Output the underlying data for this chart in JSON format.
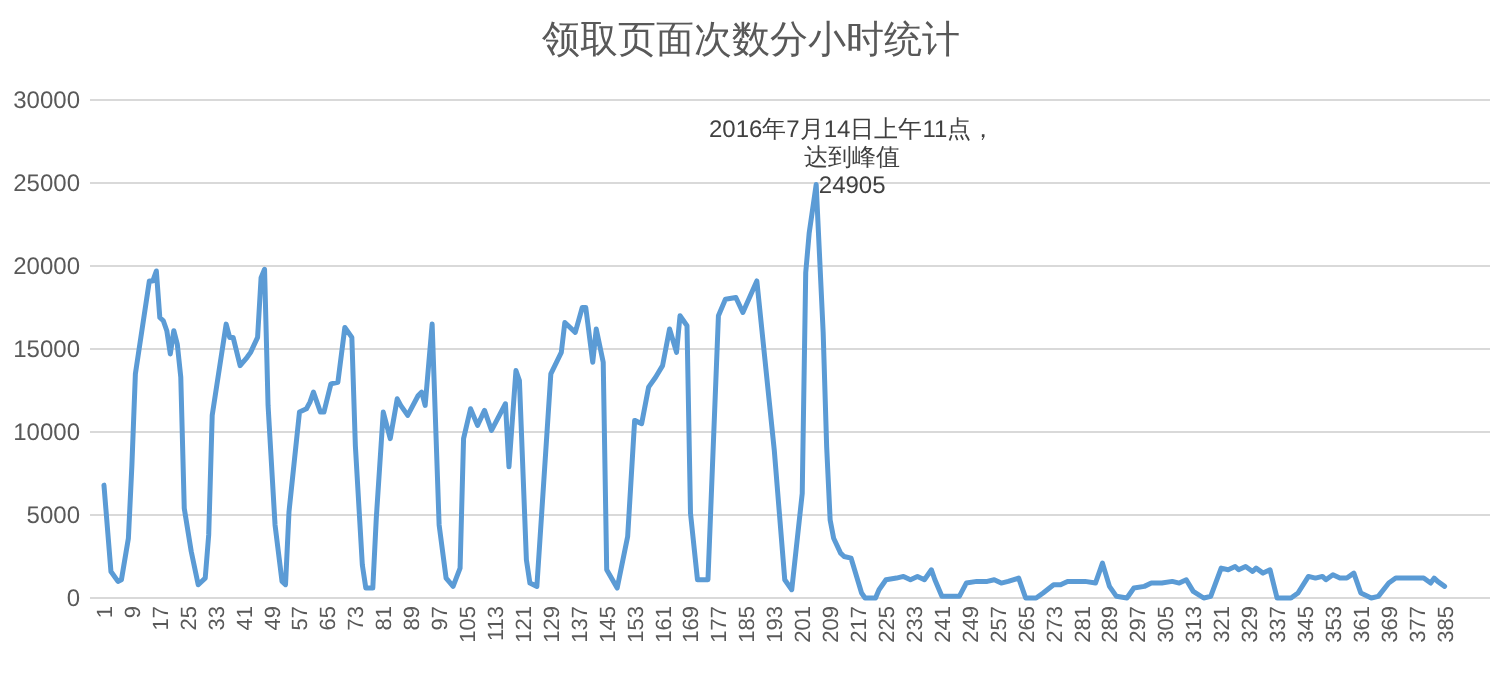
{
  "chart_data": {
    "type": "line",
    "title": "领取页面次数分小时统计",
    "x": [
      1,
      3,
      5,
      6,
      8,
      9,
      10,
      12,
      14,
      15,
      16,
      17,
      18,
      19,
      20,
      21,
      22,
      23,
      24,
      26,
      28,
      30,
      31,
      32,
      36,
      37,
      38,
      40,
      42,
      43,
      45,
      46,
      47,
      48,
      50,
      52,
      53,
      54,
      57,
      59,
      60,
      61,
      63,
      64,
      66,
      68,
      70,
      72,
      73,
      75,
      76,
      78,
      79,
      81,
      83,
      85,
      86,
      88,
      91,
      92,
      93,
      95,
      97,
      99,
      101,
      103,
      104,
      106,
      108,
      110,
      112,
      116,
      117,
      119,
      120,
      122,
      123,
      125,
      129,
      132,
      133,
      136,
      138,
      139,
      141,
      142,
      144,
      145,
      148,
      151,
      153,
      155,
      157,
      159,
      161,
      163,
      165,
      166,
      168,
      169,
      171,
      174,
      177,
      179,
      182,
      184,
      188,
      193,
      196,
      198,
      201,
      202,
      203,
      205,
      207,
      208,
      209,
      210,
      212,
      213,
      215,
      218,
      219,
      222,
      223,
      225,
      228,
      230,
      232,
      234,
      236,
      238,
      239,
      241,
      244,
      246,
      248,
      251,
      254,
      256,
      258,
      260,
      263,
      265,
      268,
      270,
      273,
      275,
      277,
      280,
      282,
      285,
      287,
      289,
      291,
      294,
      296,
      299,
      301,
      304,
      307,
      309,
      311,
      313,
      316,
      318,
      321,
      323,
      325,
      326,
      328,
      330,
      331,
      333,
      335,
      337,
      341,
      343,
      346,
      348,
      350,
      351,
      353,
      355,
      357,
      359,
      361,
      364,
      366,
      369,
      371,
      373,
      376,
      379,
      381,
      382,
      383,
      385
    ],
    "values": [
      6800,
      1600,
      1000,
      1100,
      3600,
      8000,
      13500,
      16300,
      19100,
      19100,
      19700,
      16900,
      16700,
      16100,
      14700,
      16100,
      15300,
      13300,
      5400,
      2800,
      800,
      1200,
      3800,
      11000,
      16500,
      15700,
      15700,
      14000,
      14500,
      14800,
      15700,
      19300,
      19800,
      11600,
      4400,
      1000,
      800,
      5200,
      11200,
      11400,
      11800,
      12400,
      11200,
      11200,
      12900,
      13000,
      16300,
      15700,
      9200,
      2000,
      600,
      600,
      4800,
      11200,
      9600,
      12000,
      11600,
      11000,
      12200,
      12400,
      11600,
      16500,
      4400,
      1200,
      700,
      1800,
      9600,
      11400,
      10400,
      11300,
      10100,
      11700,
      7900,
      13700,
      13100,
      2300,
      900,
      700,
      13500,
      14800,
      16600,
      16000,
      17500,
      17500,
      14200,
      16200,
      14200,
      1700,
      600,
      3700,
      10700,
      10500,
      12700,
      13300,
      14000,
      16200,
      14800,
      17000,
      16400,
      5100,
      1100,
      1100,
      17000,
      18000,
      18100,
      17200,
      19100,
      8900,
      1100,
      500,
      6300,
      19600,
      22000,
      24905,
      16000,
      9100,
      4700,
      3600,
      2700,
      2500,
      2400,
      300,
      0,
      0,
      500,
      1100,
      1200,
      1300,
      1100,
      1300,
      1100,
      1700,
      1100,
      100,
      100,
      100,
      900,
      1000,
      1000,
      1100,
      900,
      1000,
      1200,
      0,
      0,
      300,
      800,
      800,
      1000,
      1000,
      1000,
      900,
      2100,
      700,
      100,
      0,
      600,
      700,
      900,
      900,
      1000,
      900,
      1100,
      400,
      0,
      100,
      1800,
      1700,
      1900,
      1700,
      1900,
      1600,
      1800,
      1500,
      1700,
      0,
      0,
      300,
      1300,
      1200,
      1300,
      1100,
      1400,
      1200,
      1200,
      1500,
      300,
      0,
      100,
      900,
      1200,
      1200,
      1200,
      1200,
      900,
      1200,
      1000,
      700
    ],
    "color": "#5b9bd5",
    "xlim": [
      -3,
      398
    ],
    "xticks": [
      1,
      9,
      17,
      25,
      33,
      41,
      49,
      57,
      65,
      73,
      81,
      89,
      97,
      105,
      113,
      121,
      129,
      137,
      145,
      153,
      161,
      169,
      177,
      185,
      193,
      201,
      209,
      217,
      225,
      233,
      241,
      249,
      257,
      265,
      273,
      281,
      289,
      297,
      305,
      313,
      321,
      329,
      337,
      345,
      353,
      361,
      369,
      377,
      385
    ],
    "ylim": [
      0,
      30000
    ],
    "yticks": [
      0,
      5000,
      10000,
      15000,
      20000,
      25000,
      30000
    ],
    "grid": "y",
    "annotations": [
      "2016年7月14日上午11点，",
      "达到峰值",
      {
        "text": "24905",
        "x": 205,
        "y": 24905
      }
    ]
  }
}
